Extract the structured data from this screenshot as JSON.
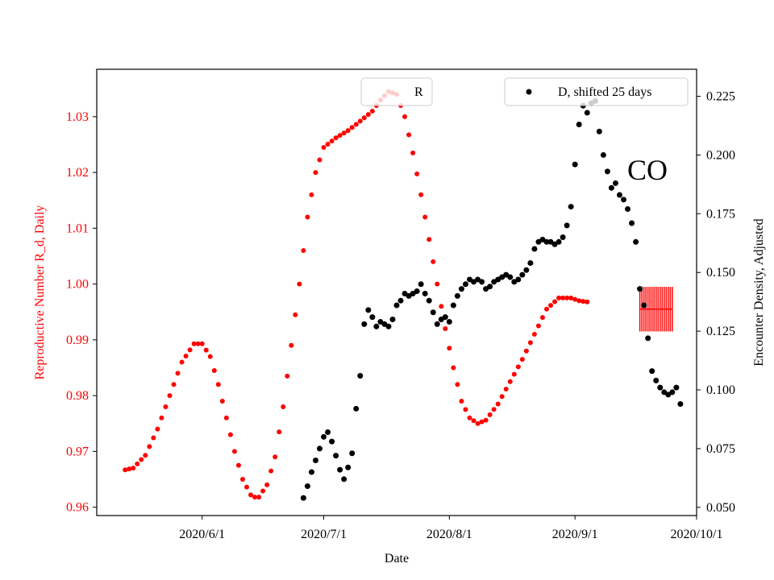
{
  "chart_data": {
    "type": "scatter",
    "xlabel": "Date",
    "y_left_label": "Reproductive Number R_d, Daily",
    "y_right_label": "Encounter Density, Adjusted",
    "annotation": "CO",
    "x_axis": {
      "type": "date",
      "range": [
        "2020-05-06",
        "2020-10-01"
      ],
      "ticks": [
        {
          "date": "2020-06-01",
          "label": "2020/6/1"
        },
        {
          "date": "2020-07-01",
          "label": "2020/7/1"
        },
        {
          "date": "2020-08-01",
          "label": "2020/8/1"
        },
        {
          "date": "2020-09-01",
          "label": "2020/9/1"
        },
        {
          "date": "2020-10-01",
          "label": "2020/10/1"
        }
      ]
    },
    "y_left": {
      "range": [
        0.9585,
        1.0385
      ],
      "ticks": [
        0.96,
        0.97,
        0.98,
        0.99,
        1.0,
        1.01,
        1.02,
        1.03
      ],
      "tick_labels": [
        "0.96",
        "0.97",
        "0.98",
        "0.99",
        "1.00",
        "1.01",
        "1.02",
        "1.03"
      ],
      "color": "#ff0000"
    },
    "y_right": {
      "range": [
        0.0465,
        0.2365
      ],
      "ticks": [
        0.05,
        0.075,
        0.1,
        0.125,
        0.15,
        0.175,
        0.2,
        0.225
      ],
      "tick_labels": [
        "0.050",
        "0.075",
        "0.100",
        "0.125",
        "0.150",
        "0.175",
        "0.200",
        "0.225"
      ],
      "color": "#000000"
    },
    "legend": [
      {
        "label": "R",
        "position": "top-center"
      },
      {
        "label": "D, shifted 25 days",
        "position": "top-right"
      }
    ],
    "series": [
      {
        "name": "R",
        "axis": "left",
        "color": "#ff0000",
        "start_date": "2020-05-13",
        "step_days": 1,
        "knots": [
          [
            0,
            0.9667
          ],
          [
            2,
            0.967
          ],
          [
            5,
            0.9693
          ],
          [
            8,
            0.974
          ],
          [
            11,
            0.98
          ],
          [
            14,
            0.986
          ],
          [
            17,
            0.9893
          ],
          [
            19,
            0.9893
          ],
          [
            21,
            0.987
          ],
          [
            23,
            0.982
          ],
          [
            25,
            0.976
          ],
          [
            27,
            0.97
          ],
          [
            29,
            0.965
          ],
          [
            31,
            0.9622
          ],
          [
            32,
            0.9618
          ],
          [
            33,
            0.9618
          ],
          [
            35,
            0.964
          ],
          [
            37,
            0.969
          ],
          [
            39,
            0.978
          ],
          [
            41,
            0.989
          ],
          [
            43,
            1.0
          ],
          [
            45,
            1.012
          ],
          [
            47,
            1.02
          ],
          [
            49,
            1.0245
          ],
          [
            52,
            1.0262
          ],
          [
            55,
            1.0275
          ],
          [
            58,
            1.0292
          ],
          [
            61,
            1.031
          ],
          [
            63,
            1.033
          ],
          [
            65,
            1.0345
          ],
          [
            67,
            1.034
          ],
          [
            69,
            1.03
          ],
          [
            71,
            1.0235
          ],
          [
            73,
            1.016
          ],
          [
            75,
            1.008
          ],
          [
            77,
            1.0
          ],
          [
            79,
            0.992
          ],
          [
            81,
            0.985
          ],
          [
            83,
            0.979
          ],
          [
            85,
            0.976
          ],
          [
            87,
            0.975
          ],
          [
            89,
            0.9756
          ],
          [
            92,
            0.9785
          ],
          [
            95,
            0.9825
          ],
          [
            98,
            0.9865
          ],
          [
            101,
            0.991
          ],
          [
            104,
            0.9955
          ],
          [
            107,
            0.9975
          ],
          [
            110,
            0.9975
          ],
          [
            112,
            0.997
          ],
          [
            114,
            0.9968
          ]
        ],
        "error_bar": {
          "date": "2020-09-19",
          "value": 0.9955,
          "x_span_days": [
            -2,
            6
          ],
          "y_range": [
            0.9915,
            0.9995
          ]
        }
      },
      {
        "name": "D, shifted 25 days",
        "axis": "right",
        "color": "#000000",
        "points": [
          [
            "2020-06-26",
            0.054
          ],
          [
            "2020-06-27",
            0.059
          ],
          [
            "2020-06-28",
            0.065
          ],
          [
            "2020-06-29",
            0.07
          ],
          [
            "2020-06-30",
            0.075
          ],
          [
            "2020-07-01",
            0.08
          ],
          [
            "2020-07-02",
            0.082
          ],
          [
            "2020-07-03",
            0.078
          ],
          [
            "2020-07-04",
            0.072
          ],
          [
            "2020-07-05",
            0.066
          ],
          [
            "2020-07-06",
            0.062
          ],
          [
            "2020-07-07",
            0.067
          ],
          [
            "2020-07-08",
            0.073
          ],
          [
            "2020-07-09",
            0.092
          ],
          [
            "2020-07-10",
            0.106
          ],
          [
            "2020-07-11",
            0.128
          ],
          [
            "2020-07-12",
            0.134
          ],
          [
            "2020-07-13",
            0.131
          ],
          [
            "2020-07-14",
            0.127
          ],
          [
            "2020-07-15",
            0.129
          ],
          [
            "2020-07-16",
            0.128
          ],
          [
            "2020-07-17",
            0.127
          ],
          [
            "2020-07-18",
            0.13
          ],
          [
            "2020-07-19",
            0.136
          ],
          [
            "2020-07-20",
            0.138
          ],
          [
            "2020-07-21",
            0.141
          ],
          [
            "2020-07-22",
            0.14
          ],
          [
            "2020-07-23",
            0.141
          ],
          [
            "2020-07-24",
            0.142
          ],
          [
            "2020-07-25",
            0.145
          ],
          [
            "2020-07-26",
            0.141
          ],
          [
            "2020-07-27",
            0.138
          ],
          [
            "2020-07-28",
            0.133
          ],
          [
            "2020-07-29",
            0.128
          ],
          [
            "2020-07-30",
            0.13
          ],
          [
            "2020-07-31",
            0.131
          ],
          [
            "2020-08-01",
            0.129
          ],
          [
            "2020-08-02",
            0.136
          ],
          [
            "2020-08-03",
            0.14
          ],
          [
            "2020-08-04",
            0.143
          ],
          [
            "2020-08-05",
            0.145
          ],
          [
            "2020-08-06",
            0.147
          ],
          [
            "2020-08-07",
            0.146
          ],
          [
            "2020-08-08",
            0.147
          ],
          [
            "2020-08-09",
            0.146
          ],
          [
            "2020-08-10",
            0.143
          ],
          [
            "2020-08-11",
            0.144
          ],
          [
            "2020-08-12",
            0.146
          ],
          [
            "2020-08-13",
            0.147
          ],
          [
            "2020-08-14",
            0.148
          ],
          [
            "2020-08-15",
            0.149
          ],
          [
            "2020-08-16",
            0.148
          ],
          [
            "2020-08-17",
            0.146
          ],
          [
            "2020-08-18",
            0.147
          ],
          [
            "2020-08-19",
            0.149
          ],
          [
            "2020-08-20",
            0.151
          ],
          [
            "2020-08-21",
            0.154
          ],
          [
            "2020-08-22",
            0.16
          ],
          [
            "2020-08-23",
            0.163
          ],
          [
            "2020-08-24",
            0.164
          ],
          [
            "2020-08-25",
            0.163
          ],
          [
            "2020-08-26",
            0.163
          ],
          [
            "2020-08-27",
            0.162
          ],
          [
            "2020-08-28",
            0.163
          ],
          [
            "2020-08-29",
            0.165
          ],
          [
            "2020-08-30",
            0.17
          ],
          [
            "2020-08-31",
            0.178
          ],
          [
            "2020-09-01",
            0.196
          ],
          [
            "2020-09-02",
            0.213
          ],
          [
            "2020-09-03",
            0.221
          ],
          [
            "2020-09-04",
            0.218
          ],
          [
            "2020-09-05",
            0.222
          ],
          [
            "2020-09-06",
            0.223
          ],
          [
            "2020-09-07",
            0.21
          ],
          [
            "2020-09-08",
            0.2
          ],
          [
            "2020-09-09",
            0.193
          ],
          [
            "2020-09-10",
            0.186
          ],
          [
            "2020-09-11",
            0.188
          ],
          [
            "2020-09-12",
            0.183
          ],
          [
            "2020-09-13",
            0.181
          ],
          [
            "2020-09-14",
            0.177
          ],
          [
            "2020-09-15",
            0.171
          ],
          [
            "2020-09-16",
            0.163
          ],
          [
            "2020-09-17",
            0.143
          ],
          [
            "2020-09-18",
            0.136
          ],
          [
            "2020-09-19",
            0.122
          ],
          [
            "2020-09-20",
            0.108
          ],
          [
            "2020-09-21",
            0.104
          ],
          [
            "2020-09-22",
            0.101
          ],
          [
            "2020-09-23",
            0.099
          ],
          [
            "2020-09-24",
            0.098
          ],
          [
            "2020-09-25",
            0.099
          ],
          [
            "2020-09-26",
            0.101
          ],
          [
            "2020-09-27",
            0.094
          ]
        ]
      }
    ]
  }
}
